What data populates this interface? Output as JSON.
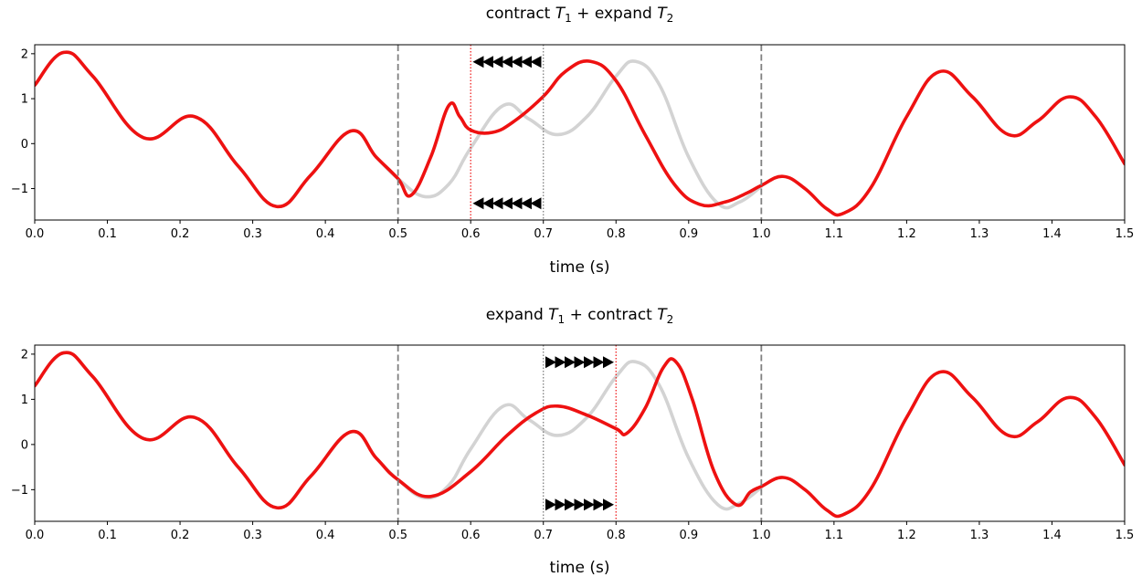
{
  "chart_data": [
    {
      "type": "line",
      "title": "contract T1 + expand T2",
      "title_parts": {
        "pre": "contract ",
        "sym1": "T",
        "sub1": "1",
        "mid": " + expand ",
        "sym2": "T",
        "sub2": "2"
      },
      "xlabel": "time (s)",
      "ylabel": "",
      "xlim": [
        0.0,
        1.5
      ],
      "ylim": [
        -1.7,
        2.2
      ],
      "xticks": [
        "0.0",
        "0.1",
        "0.2",
        "0.3",
        "0.4",
        "0.5",
        "0.6",
        "0.7",
        "0.8",
        "0.9",
        "1.0",
        "1.1",
        "1.2",
        "1.3",
        "1.4",
        "1.5"
      ],
      "yticks": [
        "−1",
        "0",
        "1",
        "2"
      ],
      "grid": false,
      "vlines_dashed_gray": [
        0.5,
        1.0
      ],
      "vline_dotted_gray": 0.7,
      "vline_dotted_red": 0.6,
      "arrow_direction": "left",
      "arrow_range": [
        0.6,
        0.7
      ],
      "arrow_y": [
        1.82,
        -1.33
      ],
      "series": [
        {
          "color": "#d3d3d3",
          "x": [
            0.0,
            0.04,
            0.08,
            0.15,
            0.22,
            0.28,
            0.333,
            0.38,
            0.435,
            0.47,
            0.5,
            0.537,
            0.57,
            0.6,
            0.645,
            0.68,
            0.72,
            0.76,
            0.8,
            0.827,
            0.86,
            0.9,
            0.94,
            0.97,
            1.0
          ],
          "values": [
            1.3,
            2.03,
            1.5,
            0.13,
            0.6,
            -0.5,
            -1.4,
            -0.7,
            0.28,
            -0.3,
            -0.78,
            -1.18,
            -0.9,
            -0.1,
            0.85,
            0.55,
            0.2,
            0.6,
            1.5,
            1.83,
            1.3,
            -0.3,
            -1.33,
            -1.3,
            -0.95
          ]
        },
        {
          "color": "#ee1111",
          "x": [
            0.0,
            0.04,
            0.08,
            0.15,
            0.22,
            0.28,
            0.333,
            0.38,
            0.435,
            0.47,
            0.5,
            0.518,
            0.545,
            0.57,
            0.585,
            0.6,
            0.63,
            0.66,
            0.7,
            0.73,
            0.765,
            0.8,
            0.84,
            0.88,
            0.915,
            0.95,
            0.98,
            1.0,
            1.03,
            1.06,
            1.09,
            1.113,
            1.15,
            1.2,
            1.245,
            1.29,
            1.34,
            1.38,
            1.423,
            1.46,
            1.5
          ],
          "values": [
            1.3,
            2.03,
            1.5,
            0.13,
            0.6,
            -0.5,
            -1.4,
            -0.7,
            0.28,
            -0.3,
            -0.78,
            -1.15,
            -0.3,
            0.85,
            0.6,
            0.3,
            0.25,
            0.5,
            1.05,
            1.6,
            1.83,
            1.4,
            0.2,
            -0.9,
            -1.35,
            -1.3,
            -1.1,
            -0.93,
            -0.73,
            -1.0,
            -1.45,
            -1.55,
            -1.0,
            0.6,
            1.6,
            1.05,
            0.2,
            0.5,
            1.04,
            0.6,
            -0.45
          ]
        }
      ]
    },
    {
      "type": "line",
      "title": "expand T1 + contract T2",
      "title_parts": {
        "pre": "expand ",
        "sym1": "T",
        "sub1": "1",
        "mid": " + contract ",
        "sym2": "T",
        "sub2": "2"
      },
      "xlabel": "time (s)",
      "ylabel": "",
      "xlim": [
        0.0,
        1.5
      ],
      "ylim": [
        -1.7,
        2.2
      ],
      "xticks": [
        "0.0",
        "0.1",
        "0.2",
        "0.3",
        "0.4",
        "0.5",
        "0.6",
        "0.7",
        "0.8",
        "0.9",
        "1.0",
        "1.1",
        "1.2",
        "1.3",
        "1.4",
        "1.5"
      ],
      "yticks": [
        "−1",
        "0",
        "1",
        "2"
      ],
      "grid": false,
      "vlines_dashed_gray": [
        0.5,
        1.0
      ],
      "vline_dotted_gray": 0.7,
      "vline_dotted_red": 0.8,
      "arrow_direction": "right",
      "arrow_range": [
        0.7,
        0.8
      ],
      "arrow_y": [
        1.82,
        -1.33
      ],
      "series": [
        {
          "color": "#d3d3d3",
          "x": [
            0.0,
            0.04,
            0.08,
            0.15,
            0.22,
            0.28,
            0.333,
            0.38,
            0.435,
            0.47,
            0.5,
            0.537,
            0.57,
            0.6,
            0.645,
            0.68,
            0.72,
            0.76,
            0.8,
            0.827,
            0.86,
            0.9,
            0.94,
            0.97,
            1.0
          ],
          "values": [
            1.3,
            2.03,
            1.5,
            0.13,
            0.6,
            -0.5,
            -1.4,
            -0.7,
            0.28,
            -0.3,
            -0.78,
            -1.18,
            -0.9,
            -0.1,
            0.85,
            0.55,
            0.2,
            0.6,
            1.5,
            1.83,
            1.3,
            -0.3,
            -1.33,
            -1.3,
            -0.95
          ]
        },
        {
          "color": "#ee1111",
          "x": [
            0.0,
            0.04,
            0.08,
            0.15,
            0.22,
            0.28,
            0.333,
            0.38,
            0.435,
            0.47,
            0.5,
            0.545,
            0.6,
            0.65,
            0.69,
            0.72,
            0.76,
            0.8,
            0.815,
            0.84,
            0.865,
            0.883,
            0.905,
            0.935,
            0.965,
            0.985,
            1.0,
            1.03,
            1.06,
            1.09,
            1.113,
            1.15,
            1.2,
            1.245,
            1.29,
            1.34,
            1.38,
            1.423,
            1.46,
            1.5
          ],
          "values": [
            1.3,
            2.03,
            1.5,
            0.13,
            0.6,
            -0.5,
            -1.4,
            -0.7,
            0.28,
            -0.3,
            -0.78,
            -1.15,
            -0.6,
            0.2,
            0.7,
            0.85,
            0.65,
            0.35,
            0.25,
            0.8,
            1.7,
            1.82,
            1.0,
            -0.6,
            -1.33,
            -1.05,
            -0.93,
            -0.73,
            -1.0,
            -1.45,
            -1.55,
            -1.0,
            0.6,
            1.6,
            1.05,
            0.2,
            0.5,
            1.04,
            0.6,
            -0.45
          ]
        }
      ]
    }
  ]
}
